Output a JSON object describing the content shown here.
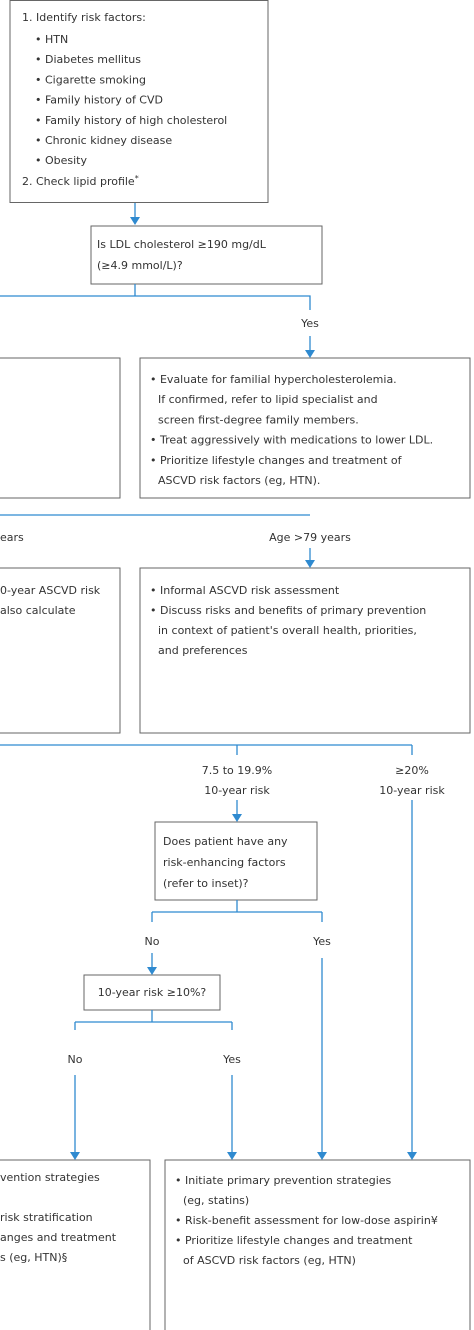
{
  "risk_box": {
    "heading": "1. Identify risk factors:",
    "factors": [
      "• HTN",
      "• Diabetes mellitus",
      "• Cigarette smoking",
      "• Family history of CVD",
      "• Family history of high cholesterol",
      "• Chronic kidney disease",
      "• Obesity"
    ],
    "step2": "2. Check lipid profile",
    "step2_mark": "*"
  },
  "ldl_question": {
    "lines": [
      "Is LDL cholesterol ≥190 mg/dL",
      "(≥4.9 mmol/L)?"
    ]
  },
  "ldl_yes_label": "Yes",
  "ldl_yes_box": {
    "lines": [
      "• Evaluate for familial hypercholesterolemia.",
      "If confirmed, refer to lipid specialist and",
      "screen first-degree family members.",
      "• Treat aggressively with medications to lower LDL.",
      "• Prioritize lifestyle changes and treatment of",
      "ASCVD risk factors (eg, HTN)."
    ]
  },
  "age_left_label": "ears",
  "age_right_label": "Age >79 years",
  "age_left_box": {
    "lines": [
      "0-year ASCVD risk",
      "also calculate"
    ]
  },
  "age_right_box": {
    "lines": [
      "• Informal ASCVD risk assessment",
      "• Discuss risks and benefits of primary prevention",
      "in context of patient's overall health, priorities,",
      "and preferences"
    ]
  },
  "risk_mid_label": {
    "lines": [
      "7.5 to 19.9%",
      "10-year risk"
    ]
  },
  "risk_high_label": {
    "lines": [
      "≥20%",
      "10-year risk"
    ]
  },
  "enhancing_question": {
    "lines": [
      "Does patient have any",
      "risk-enhancing factors",
      "(refer to inset)?"
    ]
  },
  "enhancing_no": "No",
  "enhancing_yes": "Yes",
  "risk10_question": "10-year risk ≥10%?",
  "risk10_no": "No",
  "risk10_yes": "Yes",
  "bottom_left_box": {
    "lines": [
      "vention strategies",
      "risk stratification",
      "anges and treatment",
      "s (eg, HTN)§"
    ]
  },
  "bottom_right_box": {
    "lines": [
      "• Initiate primary prevention strategies",
      "(eg, statins)",
      "• Risk-benefit assessment for low-dose aspirin¥",
      "• Prioritize lifestyle changes and treatment",
      "of ASCVD risk factors (eg, HTN)"
    ]
  }
}
